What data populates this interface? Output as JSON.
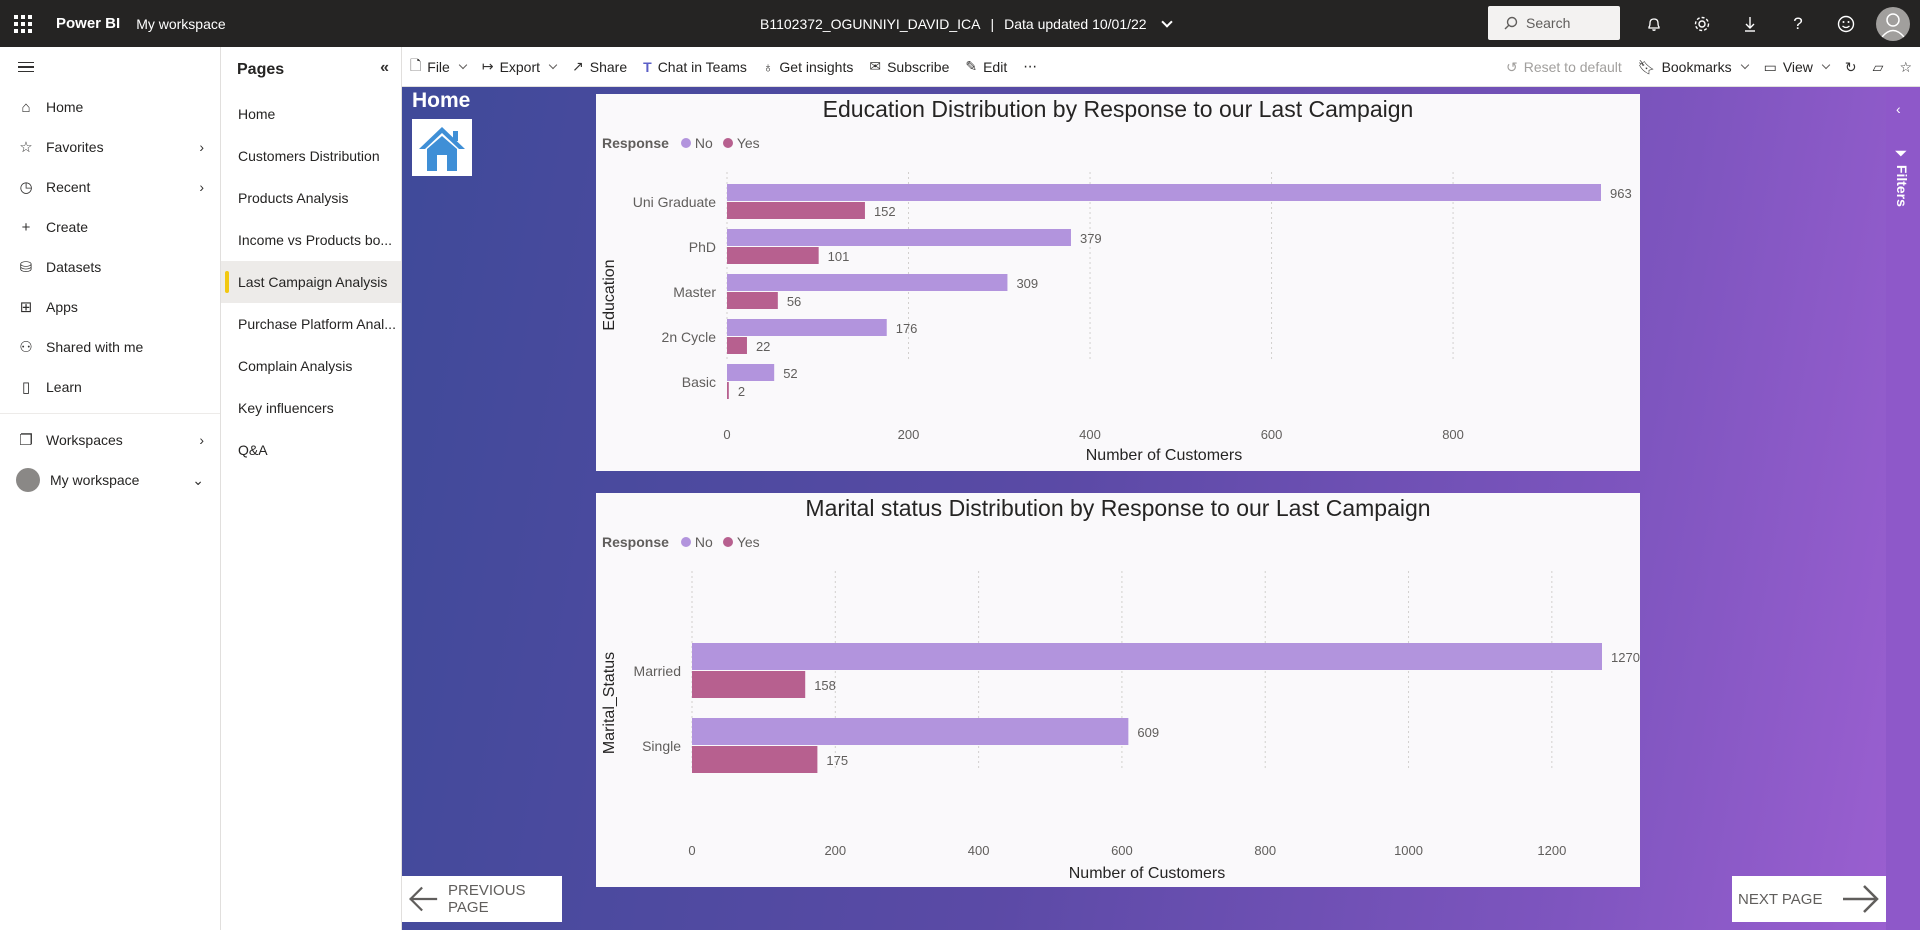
{
  "topbar": {
    "brand": "Power BI",
    "workspace": "My workspace",
    "report_name": "B1102372_OGUNNIYI_DAVID_ICA",
    "separator": "|",
    "data_updated": "Data updated 10/01/22",
    "search_placeholder": "Search",
    "icons": [
      "bell-icon",
      "gear-icon",
      "download-icon",
      "help-icon",
      "smiley-icon",
      "avatar"
    ]
  },
  "leftnav": {
    "items": [
      {
        "label": "Home",
        "icon": "home-icon",
        "chevron": false
      },
      {
        "label": "Favorites",
        "icon": "star-icon",
        "chevron": true
      },
      {
        "label": "Recent",
        "icon": "clock-icon",
        "chevron": true
      },
      {
        "label": "Create",
        "icon": "plus-icon",
        "chevron": false
      },
      {
        "label": "Datasets",
        "icon": "database-icon",
        "chevron": false
      },
      {
        "label": "Apps",
        "icon": "apps-icon",
        "chevron": false
      },
      {
        "label": "Shared with me",
        "icon": "shared-icon",
        "chevron": false
      },
      {
        "label": "Learn",
        "icon": "book-icon",
        "chevron": false
      }
    ],
    "workspaces": "Workspaces",
    "my_workspace": "My workspace"
  },
  "pages": {
    "title": "Pages",
    "items": [
      "Home",
      "Customers Distribution",
      "Products Analysis",
      "Income vs Products bo...",
      "Last Campaign Analysis",
      "Purchase Platform Anal...",
      "Complain Analysis",
      "Key influencers",
      "Q&A"
    ],
    "active_index": 4
  },
  "toolbar": {
    "file": "File",
    "export": "Export",
    "share": "Share",
    "chat": "Chat in Teams",
    "insights": "Get insights",
    "subscribe": "Subscribe",
    "edit": "Edit",
    "more": "⋯",
    "reset": "Reset to default",
    "bookmarks": "Bookmarks",
    "view": "View"
  },
  "report": {
    "home_title": "Home",
    "previous": "PREVIOUS PAGE",
    "next": "NEXT PAGE",
    "filters": "Filters"
  },
  "colors": {
    "no": "#b294dd",
    "yes": "#b7608f"
  },
  "chart_data": [
    {
      "type": "bar",
      "orientation": "horizontal",
      "title": "Education Distribution by Response to our Last Campaign",
      "legend_title": "Response",
      "categories": [
        "Uni Graduate",
        "PhD",
        "Master",
        "2n Cycle",
        "Basic"
      ],
      "series": [
        {
          "name": "No",
          "values": [
            963,
            379,
            309,
            176,
            52
          ]
        },
        {
          "name": "Yes",
          "values": [
            152,
            101,
            56,
            22,
            2
          ]
        }
      ],
      "xlabel": "Number of Customers",
      "ylabel": "Education",
      "xticks": [
        0,
        200,
        400,
        600,
        800
      ],
      "xlim": [
        0,
        963
      ]
    },
    {
      "type": "bar",
      "orientation": "horizontal",
      "title": "Marital status Distribution by Response to our Last Campaign",
      "legend_title": "Response",
      "categories": [
        "Married",
        "Single"
      ],
      "series": [
        {
          "name": "No",
          "values": [
            1270,
            609
          ]
        },
        {
          "name": "Yes",
          "values": [
            158,
            175
          ]
        }
      ],
      "xlabel": "Number of Customers",
      "ylabel": "Marital_Status",
      "xticks": [
        0,
        200,
        400,
        600,
        800,
        1000,
        1200
      ],
      "xlim": [
        0,
        1270
      ]
    }
  ]
}
